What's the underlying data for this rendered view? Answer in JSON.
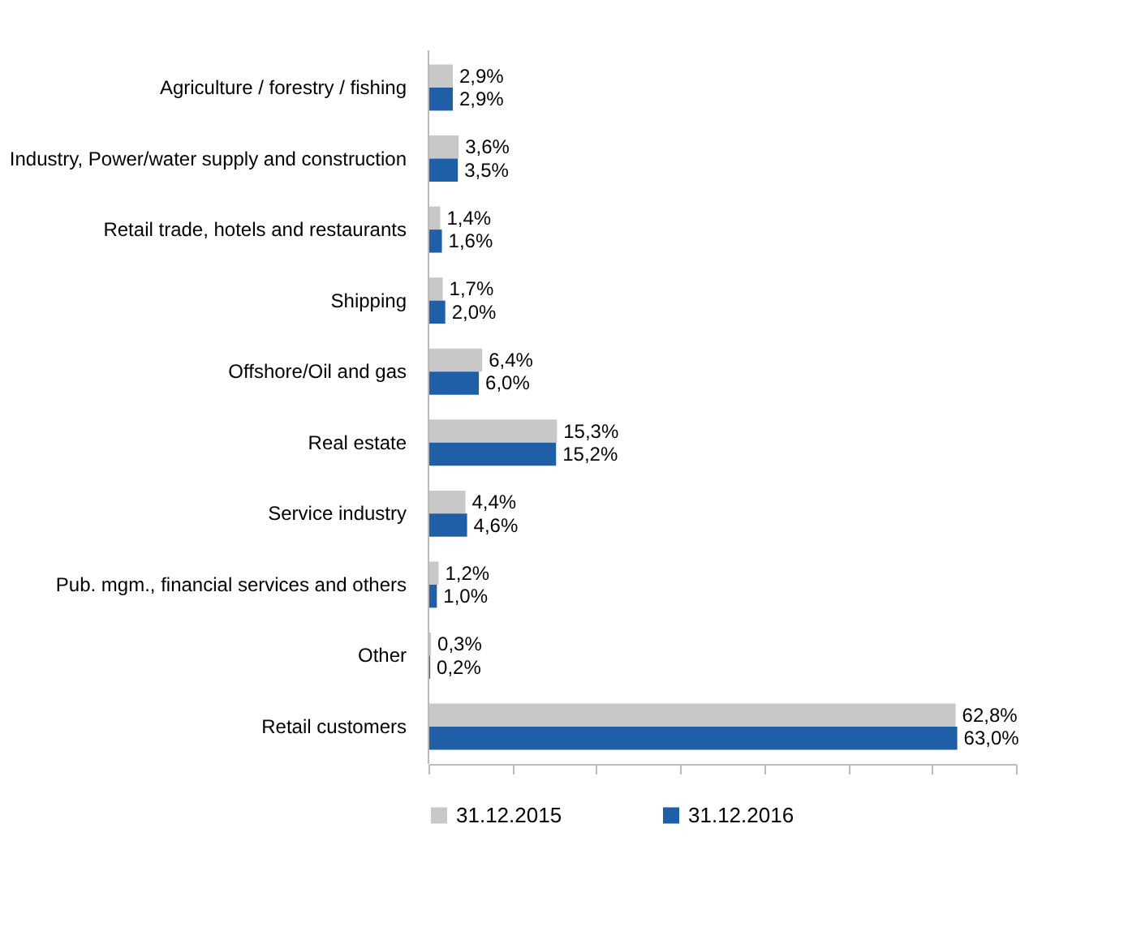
{
  "chart_data": {
    "type": "bar",
    "orientation": "horizontal",
    "categories": [
      "Agriculture / forestry / fishing",
      "Industry, Power/water supply and construction",
      "Retail trade, hotels and restaurants",
      "Shipping",
      "Offshore/Oil and gas",
      "Real estate",
      "Service industry",
      "Pub. mgm., financial services and others",
      "Other",
      "Retail customers"
    ],
    "series": [
      {
        "name": "31.12.2015",
        "color": "#c8c8c8",
        "values": [
          2.9,
          3.6,
          1.4,
          1.7,
          6.4,
          15.3,
          4.4,
          1.2,
          0.3,
          62.8
        ],
        "value_labels": [
          "2,9%",
          "3,6%",
          "1,4%",
          "1,7%",
          "6,4%",
          "15,3%",
          "4,4%",
          "1,2%",
          "0,3%",
          "62,8%"
        ]
      },
      {
        "name": "31.12.2016",
        "color": "#1f5fa8",
        "values": [
          2.9,
          3.5,
          1.6,
          2.0,
          6.0,
          15.2,
          4.6,
          1.0,
          0.2,
          63.0
        ],
        "value_labels": [
          "2,9%",
          "3,5%",
          "1,6%",
          "2,0%",
          "6,0%",
          "15,2%",
          "4,6%",
          "1,0%",
          "0,2%",
          "63,0%"
        ]
      }
    ],
    "xlim": [
      0,
      70
    ],
    "xticks": [
      {
        "value": 0,
        "label": null
      },
      {
        "value": 10,
        "label": null
      },
      {
        "value": 20,
        "label": null
      },
      {
        "value": 30,
        "label": null
      },
      {
        "value": 40,
        "label": null
      },
      {
        "value": 50,
        "label": null
      },
      {
        "value": 60,
        "label": null
      },
      {
        "value": 70,
        "label": null
      }
    ],
    "tick_labels": "y",
    "grid": false,
    "legend": "bottom"
  }
}
